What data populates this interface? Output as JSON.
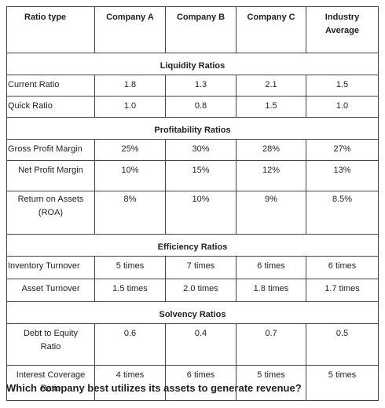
{
  "headers": [
    "Ratio type",
    "Company A",
    "Company B",
    "Company C",
    "Industry Average"
  ],
  "sections": {
    "liquidity": "Liquidity Ratios",
    "profitability": "Profitability Ratios",
    "efficiency": "Efficiency Ratios",
    "solvency": "Solvency Ratios"
  },
  "rows": {
    "current_ratio": [
      "Current Ratio",
      "1.8",
      "1.3",
      "2.1",
      "1.5"
    ],
    "quick_ratio": [
      "Quick Ratio",
      "1.0",
      "0.8",
      "1.5",
      "1.0"
    ],
    "gross_profit_margin": [
      "Gross Profit Margin",
      "25%",
      "30%",
      "28%",
      "27%"
    ],
    "net_profit_margin": [
      "Net Profit Margin",
      "10%",
      "15%",
      "12%",
      "13%"
    ],
    "return_on_assets": [
      "Return on Assets (ROA)",
      "8%",
      "10%",
      "9%",
      "8.5%"
    ],
    "inventory_turnover": [
      "Inventory Turnover",
      "5 times",
      "7 times",
      "6 times",
      "6 times"
    ],
    "asset_turnover": [
      "Asset Turnover",
      "1.5 times",
      "2.0 times",
      "1.8 times",
      "1.7 times"
    ],
    "debt_to_equity": [
      "Debt to Equity Ratio",
      "0.6",
      "0.4",
      "0.7",
      "0.5"
    ],
    "interest_coverage": [
      "Interest Coverage Ratio",
      "4 times",
      "6 times",
      "5 times",
      "5 times"
    ]
  },
  "question": "Which company best utilizes its assets to generate revenue?"
}
